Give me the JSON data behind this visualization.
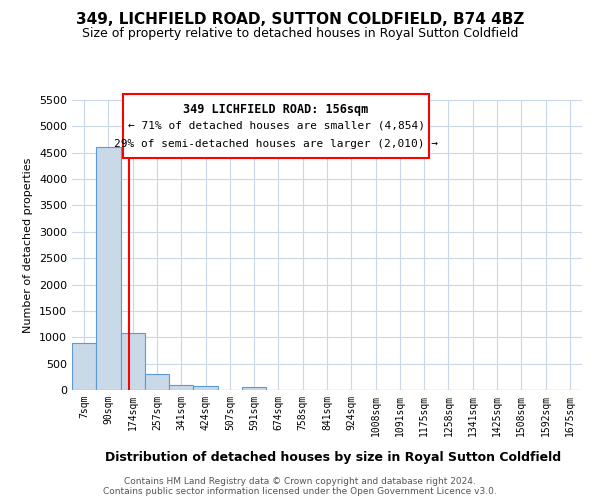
{
  "title": "349, LICHFIELD ROAD, SUTTON COLDFIELD, B74 4BZ",
  "subtitle": "Size of property relative to detached houses in Royal Sutton Coldfield",
  "xlabel": "Distribution of detached houses by size in Royal Sutton Coldfield",
  "ylabel": "Number of detached properties",
  "categories": [
    "7sqm",
    "90sqm",
    "174sqm",
    "257sqm",
    "341sqm",
    "424sqm",
    "507sqm",
    "591sqm",
    "674sqm",
    "758sqm",
    "841sqm",
    "924sqm",
    "1008sqm",
    "1091sqm",
    "1175sqm",
    "1258sqm",
    "1341sqm",
    "1425sqm",
    "1508sqm",
    "1592sqm",
    "1675sqm"
  ],
  "values": [
    900,
    4600,
    1075,
    300,
    90,
    80,
    0,
    55,
    0,
    0,
    0,
    0,
    0,
    0,
    0,
    0,
    0,
    0,
    0,
    0,
    0
  ],
  "bar_color": "#c9d9e8",
  "bar_edge_color": "#5b9bd5",
  "redline_x": 1.85,
  "annotation_title": "349 LICHFIELD ROAD: 156sqm",
  "annotation_line1": "← 71% of detached houses are smaller (4,854)",
  "annotation_line2": "29% of semi-detached houses are larger (2,010) →",
  "ylim": [
    0,
    5500
  ],
  "yticks": [
    0,
    500,
    1000,
    1500,
    2000,
    2500,
    3000,
    3500,
    4000,
    4500,
    5000,
    5500
  ],
  "footer1": "Contains HM Land Registry data © Crown copyright and database right 2024.",
  "footer2": "Contains public sector information licensed under the Open Government Licence v3.0.",
  "background_color": "#ffffff",
  "grid_color": "#c8d8e8"
}
